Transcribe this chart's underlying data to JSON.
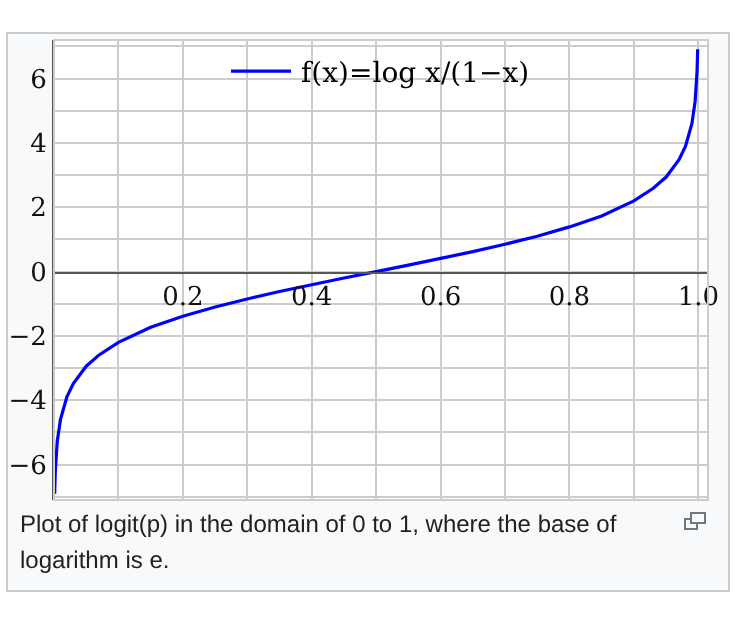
{
  "chart_data": {
    "type": "line",
    "annotations": [
      "Plot of logit(p) in the domain of 0 to 1, where the base of logarithm is e."
    ],
    "x": [
      0.001,
      0.002,
      0.005,
      0.01,
      0.02,
      0.03,
      0.05,
      0.07,
      0.1,
      0.15,
      0.2,
      0.25,
      0.3,
      0.35,
      0.4,
      0.45,
      0.5,
      0.55,
      0.6,
      0.65,
      0.7,
      0.75,
      0.8,
      0.85,
      0.9,
      0.93,
      0.95,
      0.97,
      0.98,
      0.99,
      0.995,
      0.998,
      0.999
    ],
    "series": [
      {
        "name": "f(x)=log x/(1−x)",
        "color": "#0000ff",
        "values": [
          -6.91,
          -6.21,
          -5.29,
          -4.6,
          -3.89,
          -3.48,
          -2.94,
          -2.59,
          -2.2,
          -1.73,
          -1.39,
          -1.1,
          -0.85,
          -0.62,
          -0.41,
          -0.2,
          0,
          0.2,
          0.41,
          0.62,
          0.85,
          1.1,
          1.39,
          1.73,
          2.2,
          2.59,
          2.94,
          3.48,
          3.89,
          4.6,
          5.29,
          6.21,
          6.91
        ]
      }
    ],
    "xlim": [
      0,
      1.015
    ],
    "ylim": [
      -7.1,
      7.2
    ],
    "xticks": [
      {
        "value": 0.1,
        "label": null
      },
      0.2,
      {
        "value": 0.3,
        "label": null
      },
      0.4,
      {
        "value": 0.5,
        "label": null
      },
      0.6,
      {
        "value": 0.7,
        "label": null
      },
      0.8,
      {
        "value": 0.9,
        "label": null
      },
      {
        "value": 1,
        "label": "1.0"
      }
    ],
    "yticks": [
      {
        "value": -7,
        "label": null
      },
      {
        "value": -6,
        "label": "−6"
      },
      {
        "value": -5,
        "label": null
      },
      {
        "value": -4,
        "label": "−4"
      },
      {
        "value": -3,
        "label": null
      },
      {
        "value": -2,
        "label": "−2"
      },
      {
        "value": -1,
        "label": null
      },
      0,
      {
        "value": 1,
        "label": null
      },
      2,
      {
        "value": 3,
        "label": null
      },
      4,
      {
        "value": 5,
        "label": null
      },
      6,
      {
        "value": 7,
        "label": null
      }
    ],
    "grid": true,
    "legend": "top",
    "marker": "none",
    "line_style": "solid"
  }
}
